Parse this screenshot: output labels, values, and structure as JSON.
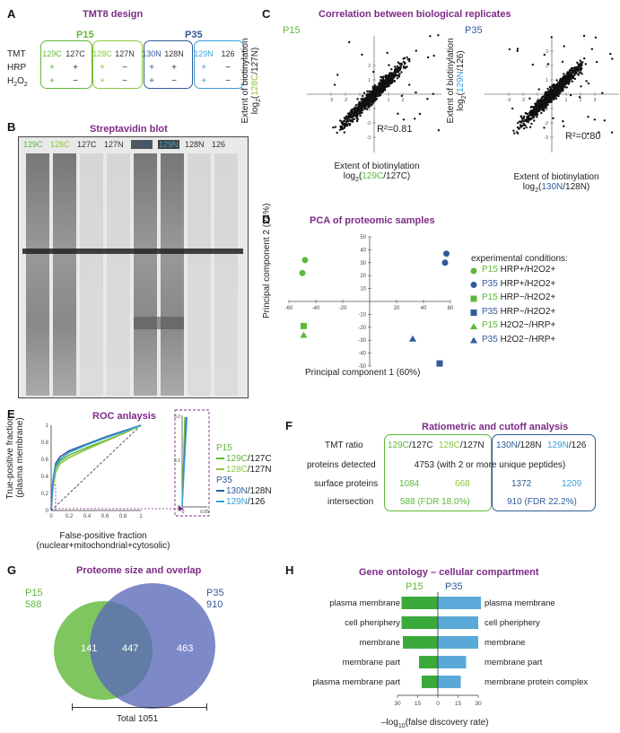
{
  "colors": {
    "p15": "#5fb83a",
    "p15_light": "#8cc63f",
    "p35": "#2f5b9a",
    "p35_light": "#3aa0d8",
    "title": "#7d2a86",
    "bar_p15": "#3aaa3a",
    "bar_p35": "#5aa9d8"
  },
  "panelA": {
    "label": "A",
    "title": "TMT8 design",
    "groups": [
      "P15",
      "P35"
    ],
    "row_labels": [
      "TMT",
      "HRP",
      "H2O2"
    ],
    "channels": [
      "129C",
      "127C",
      "128C",
      "127N",
      "130N",
      "128N",
      "129N",
      "126"
    ],
    "hrp": [
      "+",
      "+",
      "+",
      "−",
      "+",
      "+",
      "+",
      "−"
    ],
    "h2o2": [
      "+",
      "−",
      "+",
      "−",
      "+",
      "−",
      "+",
      "−"
    ]
  },
  "panelB": {
    "label": "B",
    "title": "Streptavidin blot",
    "lanes": [
      "129C",
      "128C",
      "127C",
      "127N",
      "130N",
      "129N",
      "128N",
      "126"
    ]
  },
  "panelC": {
    "label": "C",
    "title": "Correlation between biological replicates",
    "left": {
      "group": "P15",
      "ylabel_top": "Extent of biotinylation",
      "ylabel_bottom": "log2(128C/127N)",
      "xlabel_top": "Extent of biotinylation",
      "xlabel_bottom": "log2(129C/127C)",
      "r2": "R²=0.81",
      "ticks": [
        "-4",
        "-3",
        "-2",
        "-1",
        "0",
        "1",
        "2",
        "3"
      ]
    },
    "right": {
      "group": "P35",
      "ylabel_top": "Extent of biotinylation",
      "ylabel_bottom": "log2(129N/126)",
      "xlabel_top": "Extent of biotinylation",
      "xlabel_bottom": "log2(130N/128N)",
      "r2": "R²=0.80",
      "ticks": [
        "-4",
        "-3",
        "-2",
        "-1",
        "0",
        "1",
        "2",
        "3",
        "4"
      ]
    }
  },
  "panelD": {
    "label": "D",
    "title": "PCA of proteomic samples",
    "legend_title": "experimental conditions:",
    "legend": [
      "P15 HRP+/H2O2+",
      "P35 HRP+/H2O2+",
      "P15 HRP−/H2O2+",
      "P35 HRP−/H2O2+",
      "P15 H2O2−/HRP+",
      "P35 H2O2−/HRP+"
    ]
  },
  "panelE": {
    "label": "E",
    "title": "ROC anlaysis",
    "ylabel_top": "True-positive fraction",
    "ylabel_bottom": "(plasma membrane)",
    "xlabel_top": "False-positive fraction",
    "xlabel_bottom": "(nuclear+mitochondrial+cytosolic)",
    "legend": [
      {
        "group": "P15",
        "items": [
          "129C/127C",
          "128C/127N"
        ]
      },
      {
        "group": "P35",
        "items": [
          "130N/128N",
          "129N/126"
        ]
      }
    ]
  },
  "panelF": {
    "label": "F",
    "title": "Ratiometric and cutoff analysis",
    "row_labels": [
      "TMT ratio",
      "proteins detected",
      "surface proteins",
      "intersection"
    ],
    "ratios": [
      "129C/127C",
      "128C/127N",
      "130N/128N",
      "129N/126"
    ],
    "detected": "4753 (with 2 or more unique peptides)",
    "surface": [
      "1084",
      "668",
      "1372",
      "1209"
    ],
    "intersection": [
      "588 (FDR 18.0%)",
      "910 (FDR 22.2%)"
    ]
  },
  "panelG": {
    "label": "G",
    "title": "Proteome size and overlap",
    "left_label": "P15",
    "left_count": "588",
    "right_label": "P35",
    "right_count": "910",
    "only_left": "141",
    "both": "447",
    "only_right": "463",
    "total": "Total 1051"
  },
  "panelH": {
    "label": "H",
    "title": "Gene ontology – cellular compartment",
    "group_left": "P15",
    "group_right": "P35",
    "xlabel": "–log10(false discovery rate)"
  },
  "chart_data": [
    {
      "type": "scatter",
      "title": "P15",
      "xlabel": "Extent of biotinylation log2(129C/127C)",
      "ylabel": "Extent of biotinylation log2(128C/127N)",
      "r2": 0.81
    },
    {
      "type": "scatter",
      "title": "P35",
      "xlabel": "Extent of biotinylation log2(130N/128N)",
      "ylabel": "Extent of biotinylation log2(129N/126)",
      "r2": 0.8
    },
    {
      "type": "scatter",
      "title": "PCA of proteomic samples",
      "xlabel": "Principal component 1 (60%)",
      "ylabel": "Principal component 2 (24%)",
      "xlim": [
        -60,
        60
      ],
      "ylim": [
        -50,
        50
      ],
      "xticks": [
        -60,
        -40,
        -20,
        20,
        40,
        60
      ],
      "yticks": [
        -50,
        -40,
        -30,
        -20,
        -10,
        10,
        20,
        30,
        40,
        50
      ],
      "series": [
        {
          "name": "P15 HRP+/H2O2+",
          "marker": "circle",
          "color": "#5fb83a",
          "x": [
            -48,
            -50
          ],
          "y": [
            32,
            22
          ]
        },
        {
          "name": "P35 HRP+/H2O2+",
          "marker": "circle",
          "color": "#2f5b9a",
          "x": [
            57,
            56
          ],
          "y": [
            37,
            30
          ]
        },
        {
          "name": "P15 HRP−/H2O2+",
          "marker": "square",
          "color": "#5fb83a",
          "x": [
            -49
          ],
          "y": [
            -19
          ]
        },
        {
          "name": "P35 HRP−/H2O2+",
          "marker": "square",
          "color": "#2f5b9a",
          "x": [
            52
          ],
          "y": [
            -48
          ]
        },
        {
          "name": "P15 H2O2−/HRP+",
          "marker": "triangle",
          "color": "#5fb83a",
          "x": [
            -49
          ],
          "y": [
            -26
          ]
        },
        {
          "name": "P35 H2O2−/HRP+",
          "marker": "triangle",
          "color": "#2f5b9a",
          "x": [
            32
          ],
          "y": [
            -29
          ]
        }
      ]
    },
    {
      "type": "line",
      "title": "ROC anlaysis",
      "xlim": [
        0,
        1
      ],
      "ylim": [
        0,
        1
      ],
      "xticks": [
        "0",
        "0.2",
        "0.4",
        "0.6",
        "0.8",
        "1"
      ],
      "yticks": [
        "0",
        "0.2",
        "0.4",
        "0.6",
        "0.8",
        "1"
      ],
      "series": [
        {
          "name": "129C/127C",
          "color": "#5fb83a",
          "x": [
            0,
            0.02,
            0.05,
            0.1,
            0.2,
            0.4,
            0.6,
            0.8,
            1
          ],
          "y": [
            0,
            0.3,
            0.5,
            0.58,
            0.65,
            0.74,
            0.82,
            0.9,
            1
          ]
        },
        {
          "name": "128C/127N",
          "color": "#8cc63f",
          "x": [
            0,
            0.02,
            0.05,
            0.1,
            0.2,
            0.4,
            0.6,
            0.8,
            1
          ],
          "y": [
            0,
            0.25,
            0.45,
            0.55,
            0.62,
            0.72,
            0.81,
            0.9,
            1
          ]
        },
        {
          "name": "130N/128N",
          "color": "#2f5b9a",
          "x": [
            0,
            0.02,
            0.05,
            0.1,
            0.2,
            0.4,
            0.6,
            0.8,
            1
          ],
          "y": [
            0,
            0.35,
            0.55,
            0.63,
            0.7,
            0.78,
            0.86,
            0.93,
            1
          ]
        },
        {
          "name": "129N/126",
          "color": "#3aa0d8",
          "x": [
            0,
            0.02,
            0.05,
            0.1,
            0.2,
            0.4,
            0.6,
            0.8,
            1
          ],
          "y": [
            0,
            0.32,
            0.52,
            0.6,
            0.68,
            0.77,
            0.85,
            0.92,
            1
          ]
        }
      ],
      "inset": {
        "yticks": [
          "0.2",
          "0.1",
          "0"
        ],
        "xticks": [
          "0",
          "0.05"
        ]
      }
    },
    {
      "type": "bar",
      "title": "Gene ontology – cellular compartment",
      "xlabel": "–log10(false discovery rate)",
      "xticks": [
        "30",
        "15",
        "0",
        "15",
        "30"
      ],
      "series": [
        {
          "name": "P15",
          "categories": [
            "plasma membrane",
            "cell pheriphery",
            "membrane",
            "membrane part",
            "plasma membrane part"
          ],
          "values": [
            27,
            27,
            26,
            14,
            12
          ]
        },
        {
          "name": "P35",
          "categories": [
            "plasma membrane",
            "cell pheriphery",
            "membrane",
            "membrane part",
            "membrane protein complex"
          ],
          "values": [
            32,
            30,
            30,
            21,
            17
          ]
        }
      ]
    }
  ]
}
